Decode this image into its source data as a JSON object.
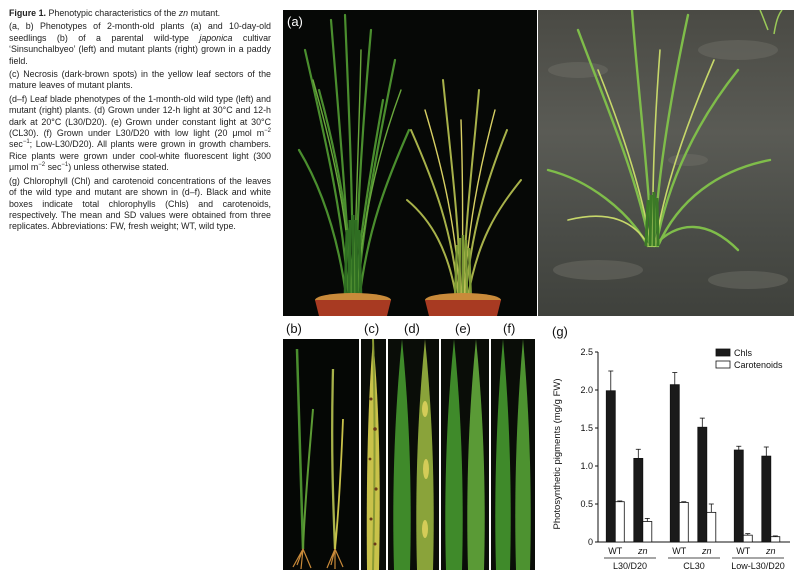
{
  "caption": {
    "fig_label": "Figure 1.",
    "title_text": "Phenotypic characteristics of the",
    "title_italic": "zn",
    "title_end": "mutant.",
    "ab_1": "(a, b) Phenotypes of 2-month-old plants (a) and 10-day-old seedlings (b) of a parental wild-type",
    "ab_italic": "japonica",
    "ab_2": "cultivar ‘Sinsunchalbyeo’ (left) and mutant plants (right) grown in a paddy field.",
    "c_text": "(c) Necrosis (dark-brown spots) in the yellow leaf sectors of the mature leaves of mutant plants.",
    "df_1": "(d–f) Leaf blade phenotypes of the 1-month-old wild type (left) and mutant (right) plants. (d) Grown under 12-h light at 30°C and 12-h dark at 20°C (L30/D20). (e) Grown under constant light at 30°C (CL30). (f) Grown under L30/D20 with low light (20 μmol m",
    "df_sup1": "−2",
    "df_2": " sec",
    "df_sup2": "−1",
    "df_3": "; Low-L30/D20). All plants were grown in growth chambers. Rice plants were grown under cool-white fluorescent light (300 μmol m",
    "df_sup3": "−2",
    "df_4": " sec",
    "df_sup4": "−1",
    "df_5": ") unless otherwise stated.",
    "g_text": "(g) Chlorophyll (Chl) and carotenoid concentrations of the leaves of the wild type and mutant are shown in (d–f). Black and white boxes indicate total chlorophylls (Chls) and carotenoids, respectively. The mean and SD values were obtained from three replicates. Abbreviations: FW, fresh weight; WT, wild type."
  },
  "panels": {
    "a": "(a)",
    "b": "(b)",
    "c": "(c)",
    "d": "(d)",
    "e": "(e)",
    "f": "(f)",
    "g": "(g)"
  },
  "colors": {
    "chls_bar": "#1a1a1a",
    "carotenoid_bar": "#ffffff",
    "leaf_green": "#3f8a2a",
    "leaf_yellow": "#c9c24a",
    "soil": "#c98a3a",
    "pot": "#a83a22"
  },
  "chart_data": {
    "type": "bar",
    "title": "",
    "ylabel": "Photosynthetic pigments (mg/g FW)",
    "xlabel": "",
    "ylim": [
      0,
      2.5
    ],
    "yticks": [
      "0",
      "0.5",
      "1.0",
      "1.5",
      "2.0",
      "2.5"
    ],
    "categories": [
      "WT",
      "zn",
      "WT",
      "zn",
      "WT",
      "zn"
    ],
    "groups": [
      "L30/D20",
      "CL30",
      "Low-L30/D20"
    ],
    "series": [
      {
        "name": "Chls",
        "values": [
          1.99,
          1.1,
          2.07,
          1.51,
          1.21,
          1.13
        ],
        "errors": [
          0.26,
          0.12,
          0.16,
          0.12,
          0.05,
          0.12
        ]
      },
      {
        "name": "Carotenoids",
        "values": [
          0.53,
          0.27,
          0.52,
          0.39,
          0.09,
          0.07
        ],
        "errors": [
          0.01,
          0.04,
          0.01,
          0.11,
          0.02,
          0.01
        ]
      }
    ],
    "legend_position": "top-right"
  }
}
